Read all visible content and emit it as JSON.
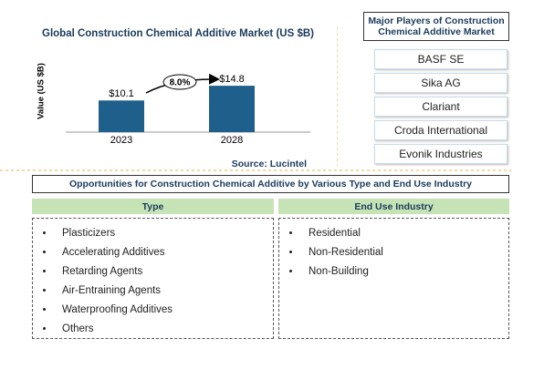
{
  "chart_data": {
    "type": "bar",
    "title": "Global Construction Chemical Additive Market (US $B)",
    "y_label": "Value (US $B)",
    "categories": [
      "2023",
      "2028"
    ],
    "values": [
      10.1,
      14.8
    ],
    "value_labels": [
      "$10.1",
      "$14.8"
    ],
    "color": "#1f5f8b",
    "ylim": [
      0,
      16
    ],
    "annotation": "8.0%",
    "source": "Source: Lucintel"
  },
  "players": {
    "title": "Major Players of Construction Chemical Additive Market",
    "items": [
      "BASF SE",
      "Sika AG",
      "Clariant",
      "Croda International",
      "Evonik Industries"
    ]
  },
  "opportunities": {
    "title": "Opportunities for Construction Chemical Additive by Various Type and End Use Industry",
    "columns": [
      {
        "header": "Type",
        "items": [
          "Plasticizers",
          "Accelerating Additives",
          "Retarding Agents",
          "Air-Entraining Agents",
          "Waterproofing Additives",
          "Others"
        ]
      },
      {
        "header": "End Use Industry",
        "items": [
          "Residential",
          "Non-Residential",
          "Non-Building"
        ]
      }
    ]
  }
}
